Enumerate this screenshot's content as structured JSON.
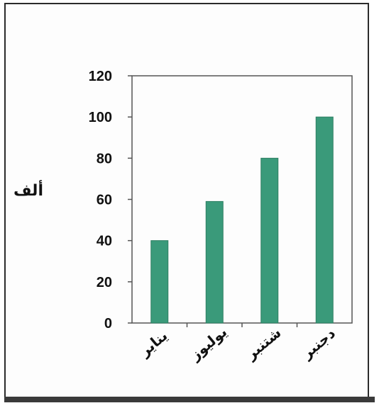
{
  "chart_data": {
    "type": "bar",
    "categories": [
      "يناير",
      "يوليوز",
      "شتنبر",
      "دجنبر"
    ],
    "values": [
      40,
      59,
      80,
      100
    ],
    "title": "",
    "xlabel": "",
    "ylabel": "ألف",
    "ylim": [
      0,
      120
    ],
    "yticks": [
      0,
      20,
      40,
      60,
      80,
      100,
      120
    ],
    "grid": false,
    "colors": {
      "bar": "#3a9a7a",
      "bar_edge": "#2e7f63",
      "axis": "#555555"
    }
  }
}
